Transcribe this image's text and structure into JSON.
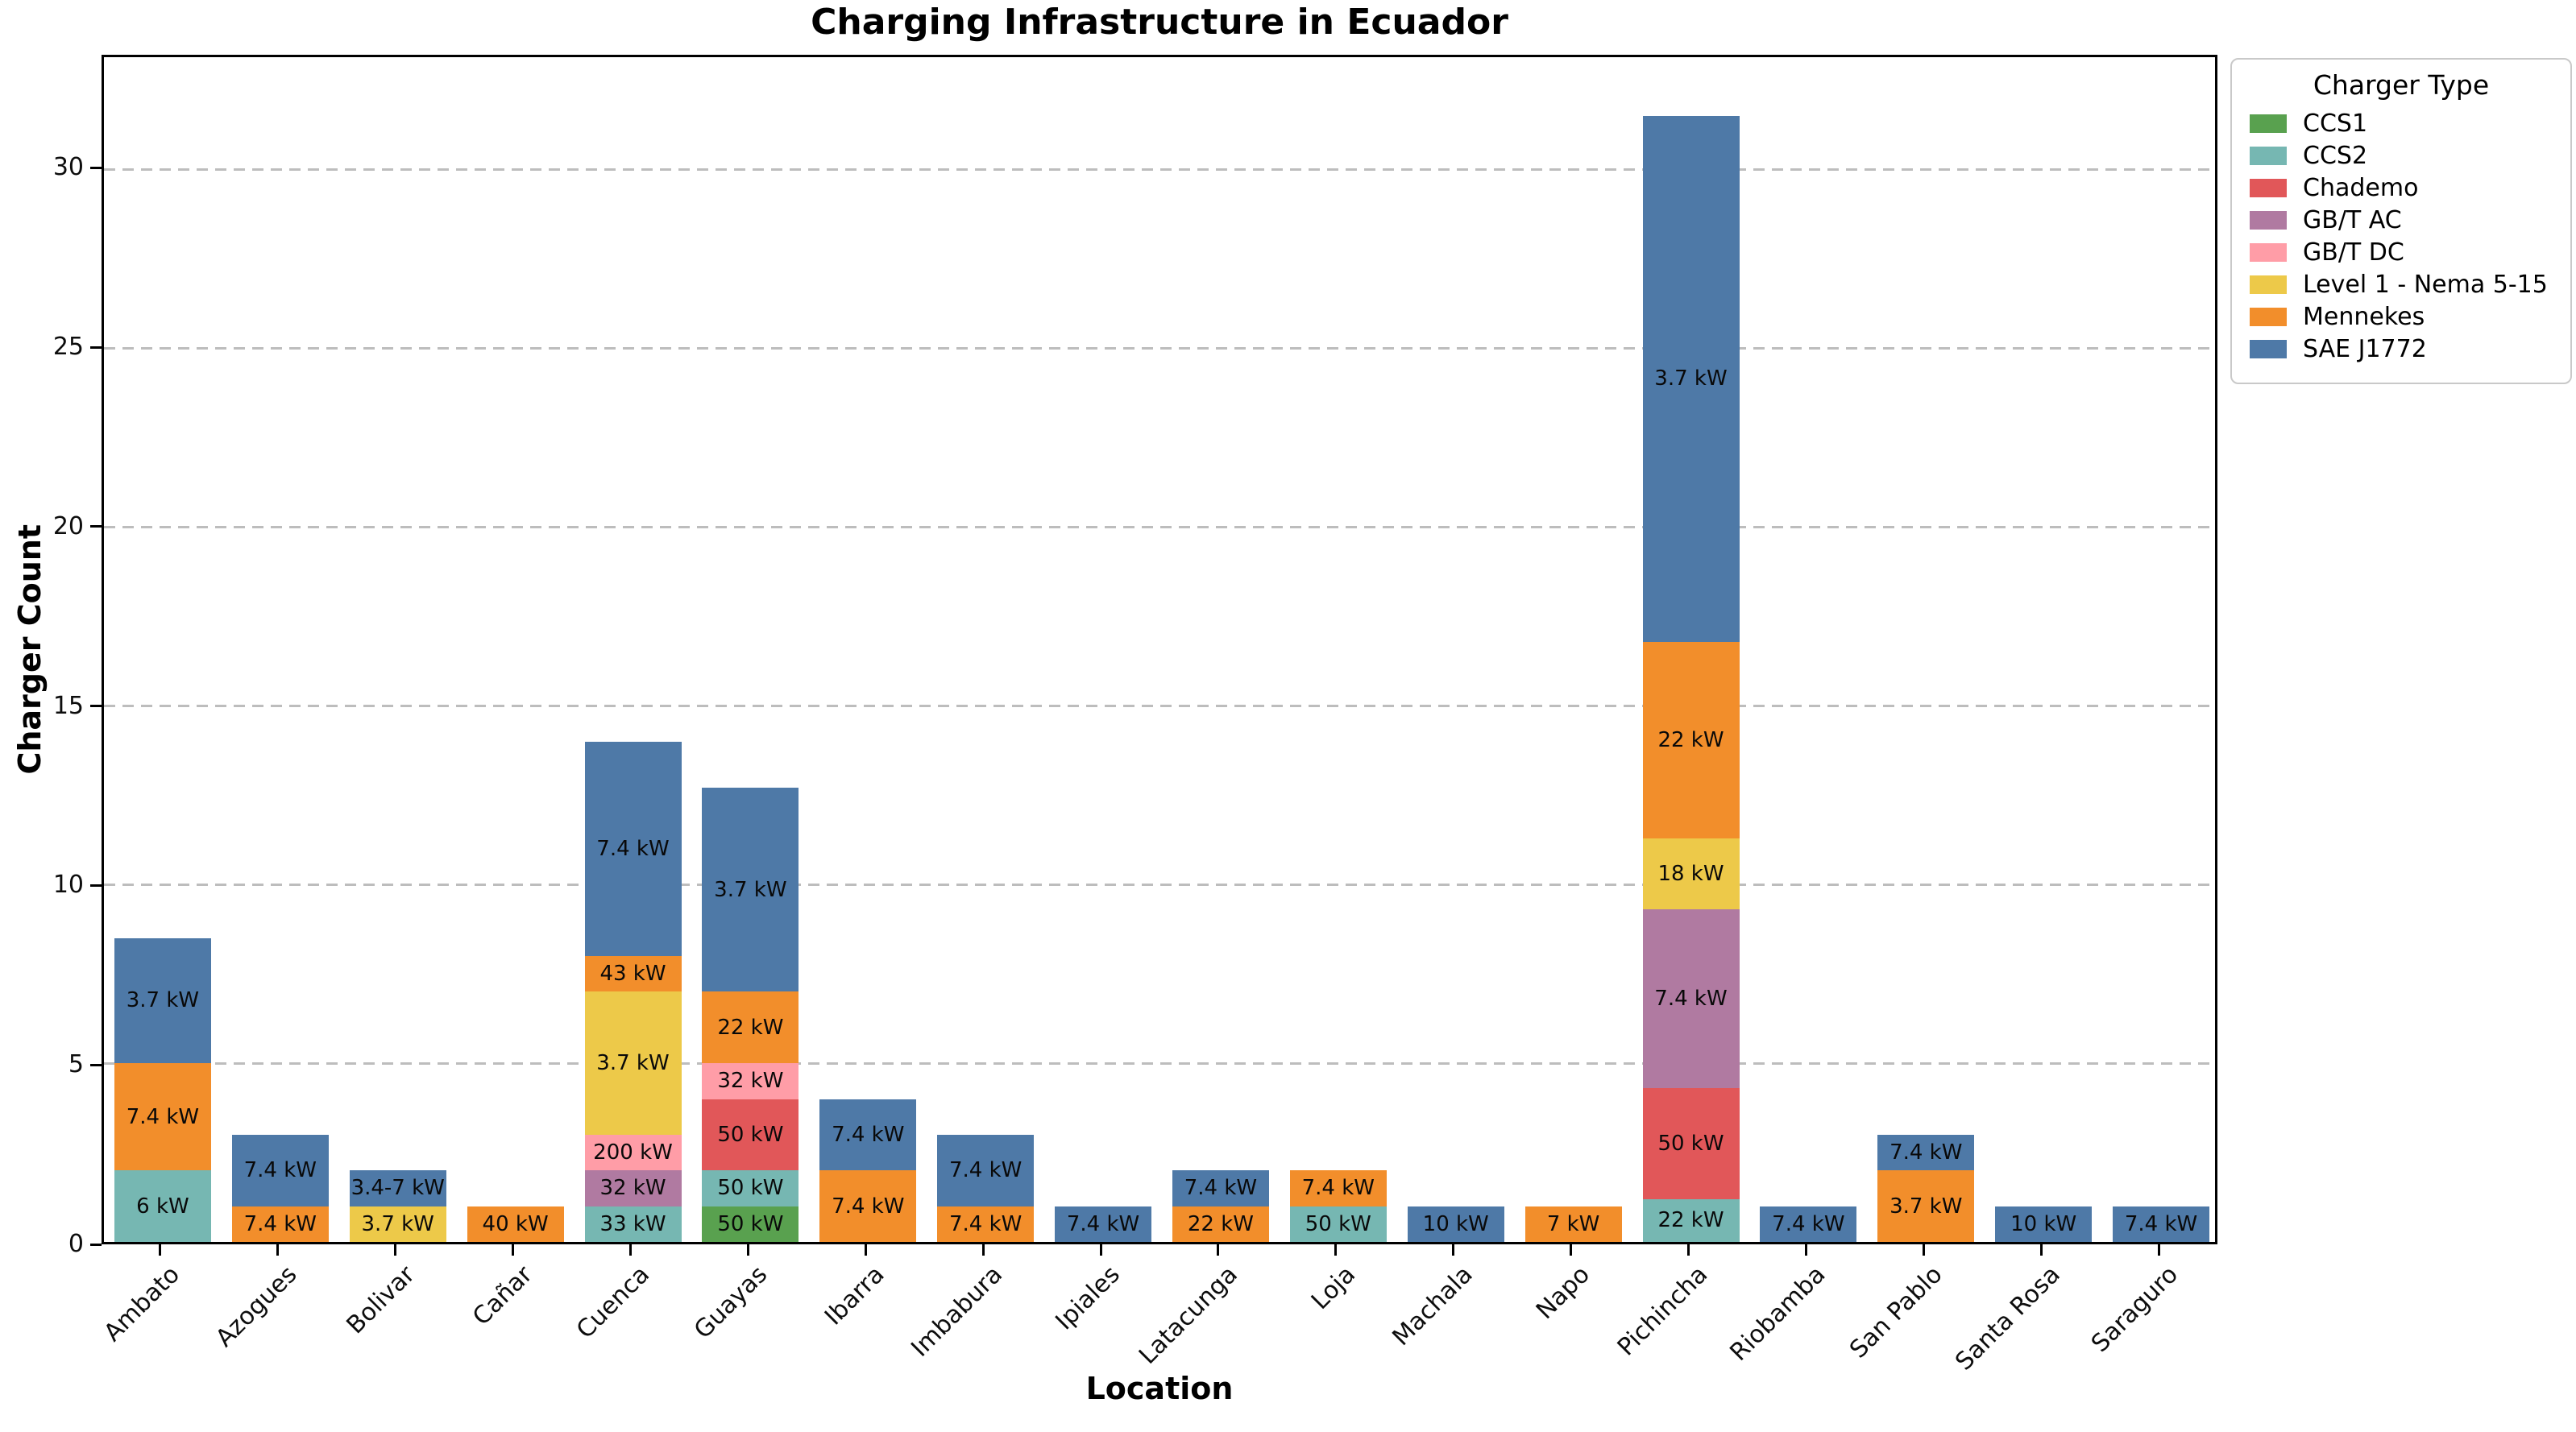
{
  "figure": {
    "title": "Charging Infrastructure in Ecuador",
    "xlabel": "Location",
    "ylabel": "Charger Count"
  },
  "legend": {
    "title": "Charger Type",
    "position": "outside upper right",
    "items": [
      {
        "label": "CCS1",
        "color": "#59a14f"
      },
      {
        "label": "CCS2",
        "color": "#76b7b2"
      },
      {
        "label": "Chademo",
        "color": "#e15759"
      },
      {
        "label": "GB/T AC",
        "color": "#b07aa1"
      },
      {
        "label": "GB/T DC",
        "color": "#ff9da7"
      },
      {
        "label": "Level 1 - Nema 5-15",
        "color": "#edc949"
      },
      {
        "label": "Mennekes",
        "color": "#f28e2b"
      },
      {
        "label": "SAE J1772",
        "color": "#4e79a7"
      }
    ]
  },
  "y_ticks": [
    0,
    5,
    10,
    15,
    20,
    25,
    30
  ],
  "chart_data": {
    "type": "bar",
    "stacked": true,
    "title": "Charging Infrastructure in Ecuador",
    "xlabel": "Location",
    "ylabel": "Charger Count",
    "ylim": [
      0,
      33.15
    ],
    "grid": "horizontal dashed gray lines at y = 5,10,15,20,25,30",
    "legend_position": "outside upper right",
    "categories": [
      "Ambato",
      "Azogues",
      "Bolivar",
      "Cañar",
      "Cuenca",
      "Guayas",
      "Ibarra",
      "Imbabura",
      "Ipiales",
      "Latacunga",
      "Loja",
      "Machala",
      "Napo",
      "Pichincha",
      "Riobamba",
      "San Pablo",
      "Santa Rosa",
      "Saraguro"
    ],
    "series_colors": {
      "CCS1": "#59a14f",
      "CCS2": "#76b7b2",
      "Chademo": "#e15759",
      "GB/T AC": "#b07aa1",
      "GB/T DC": "#ff9da7",
      "Level 1 - Nema 5-15": "#edc949",
      "Mennekes": "#f28e2b",
      "SAE J1772": "#4e79a7"
    },
    "bars": [
      {
        "location": "Ambato",
        "total": 8.5,
        "segments": [
          {
            "charger_type": "CCS2",
            "power_label": "6 kW",
            "count": 2
          },
          {
            "charger_type": "Mennekes",
            "power_label": "7.4 kW",
            "count": 3
          },
          {
            "charger_type": "SAE J1772",
            "power_label": "3.7 kW",
            "count": 3.5
          }
        ]
      },
      {
        "location": "Azogues",
        "total": 3,
        "segments": [
          {
            "charger_type": "Mennekes",
            "power_label": "7.4 kW",
            "count": 1
          },
          {
            "charger_type": "SAE J1772",
            "power_label": "7.4 kW",
            "count": 2
          }
        ]
      },
      {
        "location": "Bolivar",
        "total": 2,
        "segments": [
          {
            "charger_type": "Level 1 - Nema 5-15",
            "power_label": "3.7 kW",
            "count": 1
          },
          {
            "charger_type": "SAE J1772",
            "power_label": "3.4-7 kW",
            "count": 1
          }
        ]
      },
      {
        "location": "Cañar",
        "total": 1,
        "segments": [
          {
            "charger_type": "Mennekes",
            "power_label": "40 kW",
            "count": 1
          }
        ]
      },
      {
        "location": "Cuenca",
        "total": 14,
        "segments": [
          {
            "charger_type": "CCS2",
            "power_label": "33 kW",
            "count": 1
          },
          {
            "charger_type": "GB/T AC",
            "power_label": "32 kW",
            "count": 1
          },
          {
            "charger_type": "GB/T DC",
            "power_label": "200 kW",
            "count": 1
          },
          {
            "charger_type": "Level 1 - Nema 5-15",
            "power_label": "3.7 kW",
            "count": 4
          },
          {
            "charger_type": "Mennekes",
            "power_label": "43 kW",
            "count": 1
          },
          {
            "charger_type": "SAE J1772",
            "power_label": "7.4 kW",
            "count": 6
          }
        ]
      },
      {
        "location": "Guayas",
        "total": 12.7,
        "segments": [
          {
            "charger_type": "CCS1",
            "power_label": "50 kW",
            "count": 1
          },
          {
            "charger_type": "CCS2",
            "power_label": "50 kW",
            "count": 1
          },
          {
            "charger_type": "Chademo",
            "power_label": "50 kW",
            "count": 2
          },
          {
            "charger_type": "GB/T DC",
            "power_label": "32 kW",
            "count": 1
          },
          {
            "charger_type": "Mennekes",
            "power_label": "22 kW",
            "count": 2
          },
          {
            "charger_type": "SAE J1772",
            "power_label": "3.7 kW",
            "count": 5.7
          }
        ]
      },
      {
        "location": "Ibarra",
        "total": 4,
        "segments": [
          {
            "charger_type": "Mennekes",
            "power_label": "7.4 kW",
            "count": 2
          },
          {
            "charger_type": "SAE J1772",
            "power_label": "7.4 kW",
            "count": 2
          }
        ]
      },
      {
        "location": "Imbabura",
        "total": 3,
        "segments": [
          {
            "charger_type": "Mennekes",
            "power_label": "7.4 kW",
            "count": 1
          },
          {
            "charger_type": "SAE J1772",
            "power_label": "7.4 kW",
            "count": 2
          }
        ]
      },
      {
        "location": "Ipiales",
        "total": 1,
        "segments": [
          {
            "charger_type": "SAE J1772",
            "power_label": "7.4 kW",
            "count": 1
          }
        ]
      },
      {
        "location": "Latacunga",
        "total": 2,
        "segments": [
          {
            "charger_type": "Mennekes",
            "power_label": "22 kW",
            "count": 1
          },
          {
            "charger_type": "SAE J1772",
            "power_label": "7.4 kW",
            "count": 1
          }
        ]
      },
      {
        "location": "Loja",
        "total": 2,
        "segments": [
          {
            "charger_type": "CCS2",
            "power_label": "50 kW",
            "count": 1
          },
          {
            "charger_type": "Mennekes",
            "power_label": "7.4 kW",
            "count": 1
          }
        ]
      },
      {
        "location": "Machala",
        "total": 1,
        "segments": [
          {
            "charger_type": "SAE J1772",
            "power_label": "10 kW",
            "count": 1
          }
        ]
      },
      {
        "location": "Napo",
        "total": 1,
        "segments": [
          {
            "charger_type": "Mennekes",
            "power_label": "7 kW",
            "count": 1
          }
        ]
      },
      {
        "location": "Pichincha",
        "total": 31.5,
        "segments": [
          {
            "charger_type": "CCS2",
            "power_label": "22 kW",
            "count": 1.2
          },
          {
            "charger_type": "Chademo",
            "power_label": "50 kW",
            "count": 3.1
          },
          {
            "charger_type": "GB/T AC",
            "power_label": "7.4 kW",
            "count": 5.0
          },
          {
            "charger_type": "Level 1 - Nema 5-15",
            "power_label": "18 kW",
            "count": 2.0
          },
          {
            "charger_type": "Mennekes",
            "power_label": "22 kW",
            "count": 5.5
          },
          {
            "charger_type": "SAE J1772",
            "power_label": "3.7 kW",
            "count": 14.7
          }
        ]
      },
      {
        "location": "Riobamba",
        "total": 1,
        "segments": [
          {
            "charger_type": "SAE J1772",
            "power_label": "7.4 kW",
            "count": 1
          }
        ]
      },
      {
        "location": "San Pablo",
        "total": 3,
        "segments": [
          {
            "charger_type": "Mennekes",
            "power_label": "3.7 kW",
            "count": 2
          },
          {
            "charger_type": "SAE J1772",
            "power_label": "7.4 kW",
            "count": 1
          }
        ]
      },
      {
        "location": "Santa Rosa",
        "total": 1,
        "segments": [
          {
            "charger_type": "SAE J1772",
            "power_label": "10 kW",
            "count": 1
          }
        ]
      },
      {
        "location": "Saraguro",
        "total": 1,
        "segments": [
          {
            "charger_type": "SAE J1772",
            "power_label": "7.4 kW",
            "count": 1
          }
        ]
      }
    ]
  }
}
